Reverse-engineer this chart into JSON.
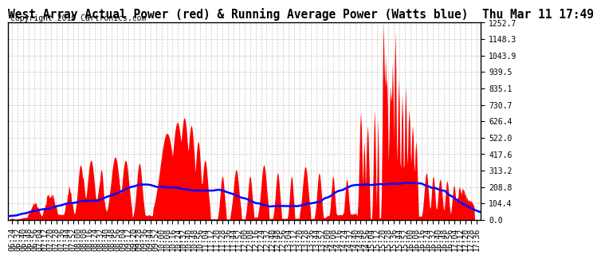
{
  "title": "West Array Actual Power (red) & Running Average Power (Watts blue)  Thu Mar 11 17:49",
  "copyright": "Copyright 2010 Cartronics.com",
  "yticks": [
    0.0,
    104.4,
    208.8,
    313.2,
    417.6,
    522.0,
    626.4,
    730.7,
    835.1,
    939.5,
    1043.9,
    1148.3,
    1252.7
  ],
  "ymax": 1252.7,
  "ymin": 0.0,
  "x_start_min": 378,
  "x_end_min": 1062,
  "xtick_interval_min": 8,
  "bar_color": "#ff0000",
  "line_color": "#0000ff",
  "bg_color": "#ffffff",
  "grid_color": "#bbbbbb",
  "title_fontsize": 10.5,
  "copyright_fontsize": 7,
  "tick_fontsize": 7
}
